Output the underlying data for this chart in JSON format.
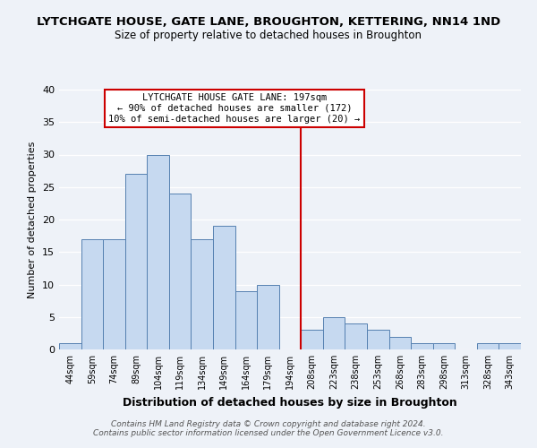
{
  "title": "LYTCHGATE HOUSE, GATE LANE, BROUGHTON, KETTERING, NN14 1ND",
  "subtitle": "Size of property relative to detached houses in Broughton",
  "xlabel": "Distribution of detached houses by size in Broughton",
  "ylabel": "Number of detached properties",
  "bin_labels": [
    "44sqm",
    "59sqm",
    "74sqm",
    "89sqm",
    "104sqm",
    "119sqm",
    "134sqm",
    "149sqm",
    "164sqm",
    "179sqm",
    "194sqm",
    "208sqm",
    "223sqm",
    "238sqm",
    "253sqm",
    "268sqm",
    "283sqm",
    "298sqm",
    "313sqm",
    "328sqm",
    "343sqm"
  ],
  "bar_heights": [
    1,
    17,
    17,
    27,
    30,
    24,
    17,
    19,
    9,
    10,
    0,
    3,
    5,
    4,
    3,
    2,
    1,
    1,
    0,
    1,
    1
  ],
  "bar_color": "#c6d9f0",
  "bar_edge_color": "#5580b0",
  "vline_color": "#cc0000",
  "ylim": [
    0,
    40
  ],
  "yticks": [
    0,
    5,
    10,
    15,
    20,
    25,
    30,
    35,
    40
  ],
  "annotation_title": "LYTCHGATE HOUSE GATE LANE: 197sqm",
  "annotation_line1": "← 90% of detached houses are smaller (172)",
  "annotation_line2": "10% of semi-detached houses are larger (20) →",
  "footer_line1": "Contains HM Land Registry data © Crown copyright and database right 2024.",
  "footer_line2": "Contains public sector information licensed under the Open Government Licence v3.0.",
  "background_color": "#eef2f8",
  "grid_color": "#ffffff"
}
